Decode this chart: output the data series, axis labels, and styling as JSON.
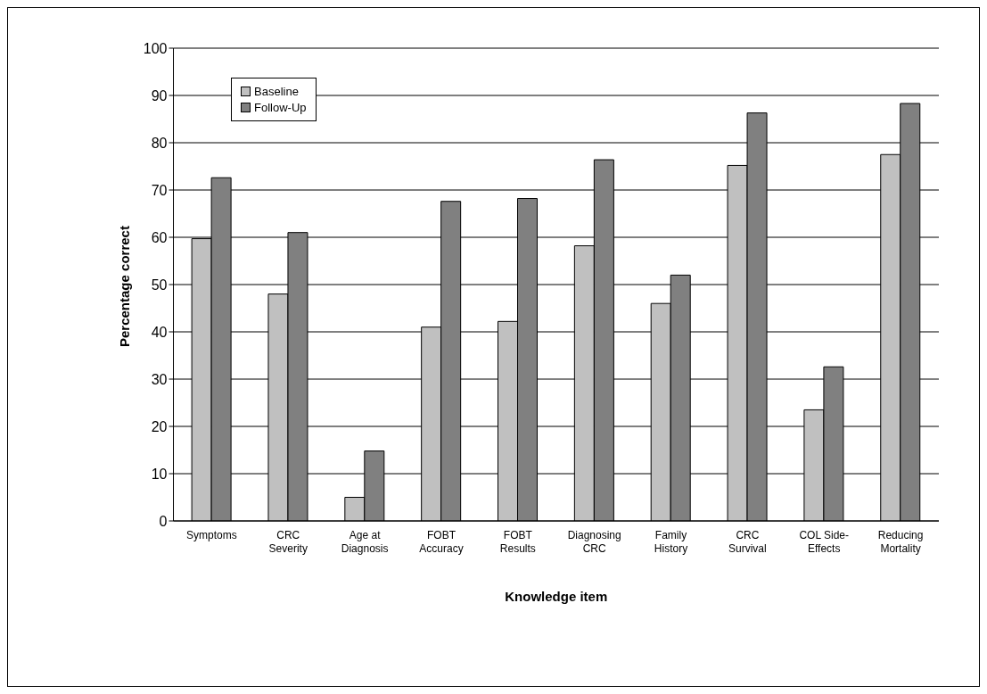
{
  "chart_data": {
    "type": "bar",
    "xlabel": "Knowledge item",
    "ylabel": "Percentage correct",
    "categories": [
      "Symptoms",
      "CRC Severity",
      "Age at Diagnosis",
      "FOBT Accuracy",
      "FOBT Results",
      "Diagnosing CRC",
      "Family History",
      "CRC Survival",
      "COL Side-Effects",
      "Reducing Mortality"
    ],
    "series": [
      {
        "name": "Baseline",
        "color": "#c0c0c0",
        "values": [
          59.7,
          48,
          5,
          41,
          42.2,
          58.2,
          46,
          75.2,
          23.5,
          77.5
        ]
      },
      {
        "name": "Follow-Up",
        "color": "#808080",
        "values": [
          72.6,
          61,
          14.8,
          67.6,
          68.2,
          76.4,
          52,
          86.3,
          32.6,
          88.3
        ]
      }
    ],
    "ylim": [
      0,
      100
    ],
    "yticks": [
      0,
      10,
      20,
      30,
      40,
      50,
      60,
      70,
      80,
      90,
      100
    ],
    "grid": "y",
    "legend": "top left"
  }
}
